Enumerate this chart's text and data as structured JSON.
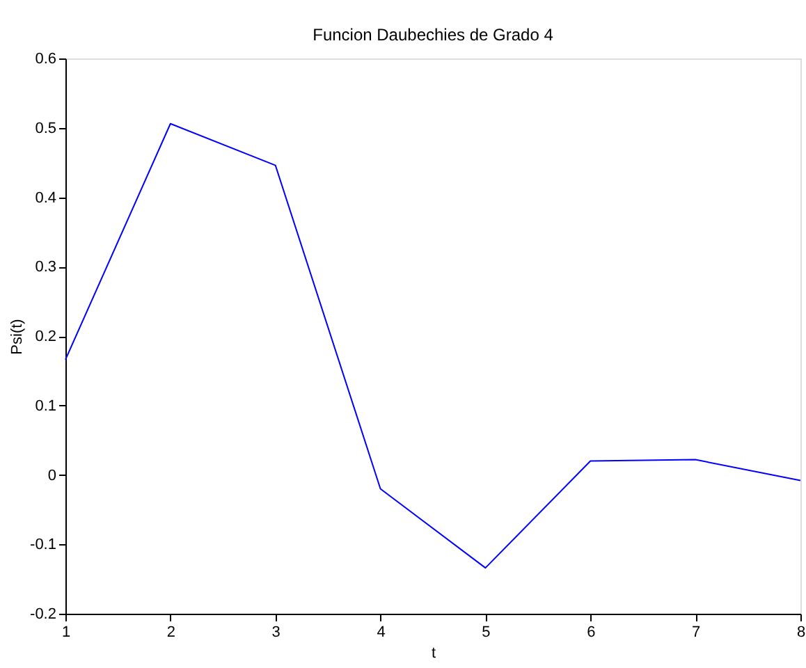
{
  "chart_data": {
    "type": "line",
    "title": "Funcion Daubechies de Grado 4",
    "xlabel": "t",
    "ylabel": "Psi(t)",
    "x": [
      1,
      2,
      3,
      4,
      5,
      6,
      7,
      8
    ],
    "series": [
      {
        "color": "#0000ff",
        "values": [
          0.166,
          0.506,
          0.446,
          -0.02,
          -0.134,
          0.02,
          0.022,
          -0.008
        ]
      }
    ],
    "xlim": [
      1,
      8
    ],
    "xticks": [
      1,
      2,
      3,
      4,
      5,
      6,
      7,
      8
    ],
    "ylim": [
      -0.2,
      0.6
    ],
    "yticks": [
      -0.2,
      -0.1,
      0,
      0.1,
      0.2,
      0.3,
      0.4,
      0.5,
      0.6
    ],
    "grid": false,
    "marker": "none",
    "line_style": "solid"
  }
}
